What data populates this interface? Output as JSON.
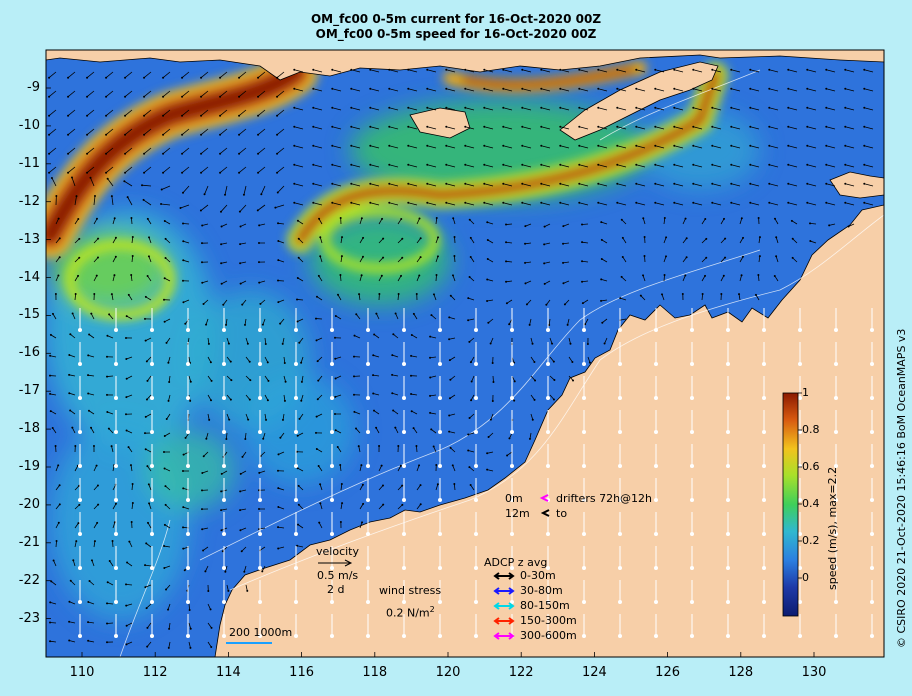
{
  "title": {
    "line1": "OM_fc00 0-5m current for 16-Oct-2020 00Z",
    "line2": "OM_fc00 0-5m speed for 16-Oct-2020 00Z"
  },
  "axes": {
    "y_labels": [
      "-9",
      "-10",
      "-11",
      "-12",
      "-13",
      "-14",
      "-15",
      "-16",
      "-17",
      "-18",
      "-19",
      "-20",
      "-21",
      "-22",
      "-23"
    ],
    "x_labels": [
      "110",
      "112",
      "114",
      "116",
      "118",
      "120",
      "122",
      "124",
      "126",
      "128",
      "130"
    ]
  },
  "colorbar": {
    "label": "speed (m/s),  max=2.2",
    "ticks": [
      "1",
      "0.8",
      "0.6",
      "0.4",
      "0.2",
      "0"
    ],
    "colors": [
      "#8b1a00",
      "#d85a10",
      "#f2c31d",
      "#a8e02a",
      "#3fcf5a",
      "#30b8cf",
      "#2c7fe0",
      "#1f3aa8",
      "#0c1b70"
    ]
  },
  "legend": {
    "velocity_title": "velocity",
    "velocity_scale": "0.5 m/s",
    "velocity_time": "2 d",
    "wind_title": "wind stress",
    "wind_scale": "0.2 N/m",
    "wind_exp": "2",
    "drifters_depth_0": "0m",
    "drifters_label": "drifters 72h@12h",
    "drifters_depth_12": "12m",
    "drifters_to": "to",
    "adcp_title": "ADCP z avg",
    "adcp_items": [
      {
        "label": "0-30m",
        "color": "#000000"
      },
      {
        "label": "30-80m",
        "color": "#1a1aff"
      },
      {
        "label": "80-150m",
        "color": "#00d8e8"
      },
      {
        "label": "150-300m",
        "color": "#ff2200"
      },
      {
        "label": "300-600m",
        "color": "#ff00ff"
      }
    ],
    "isobaths": "200  1000m"
  },
  "credit": "© CSIRO 2020   21-Oct-2020 15:46:16 BoM OceanMAPS v3",
  "colors": {
    "land": "#f7cfa8",
    "background": "#b9eef7"
  }
}
